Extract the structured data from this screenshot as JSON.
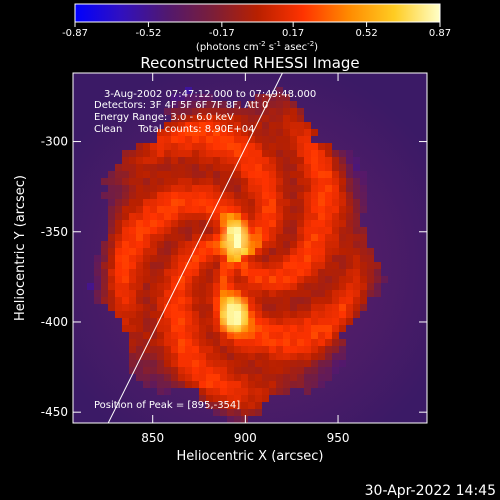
{
  "chart_data": {
    "type": "heatmap",
    "title": "Reconstructed RHESSI Image",
    "xlabel": "Heliocentric X (arcsec)",
    "ylabel": "Heliocentric Y (arcsec)",
    "xlim": [
      807,
      998
    ],
    "ylim": [
      -456,
      -262
    ],
    "xticks": [
      850,
      900,
      950
    ],
    "yticks": [
      -300,
      -350,
      -400,
      -450
    ],
    "colorbar": {
      "min": -0.87,
      "max": 0.87,
      "tick_labels": [
        "-0.87",
        "-0.52",
        "-0.17",
        "0.17",
        "0.52",
        "0.87"
      ],
      "unit_prefix": "(photons cm",
      "unit_exp1": "-2",
      "unit_mid": " s",
      "unit_exp2": "-1",
      "unit_mid2": " asec",
      "unit_exp3": "-2",
      "unit_suffix": ")",
      "colormap": [
        "#0000ff",
        "#3010c0",
        "#501870",
        "#7a1e3a",
        "#b82000",
        "#ff3300",
        "#ff8a00",
        "#ffcc22",
        "#ffffc8"
      ]
    },
    "sources": [
      {
        "x": 895,
        "y": -354,
        "relative_intensity": 1.0
      },
      {
        "x": 894,
        "y": -396,
        "relative_intensity": 0.86
      }
    ],
    "annotations": {
      "time": "3-Aug-2002 07:47:12.000 to 07:49:48.000",
      "detectors": "Detectors: 3F 4F 5F 6F 7F 8F, Att 0",
      "energy": "Energy Range: 3.0 - 6.0 keV",
      "clean": "Clean     Total counts: 8.90E+04",
      "peak": "Position of Peak = [895,-354]"
    },
    "limb_line": {
      "x_start": 826,
      "y_start": -456,
      "x_end": 920,
      "y_end": -262
    }
  },
  "footer": {
    "date": "30-Apr-2022 14:45"
  }
}
